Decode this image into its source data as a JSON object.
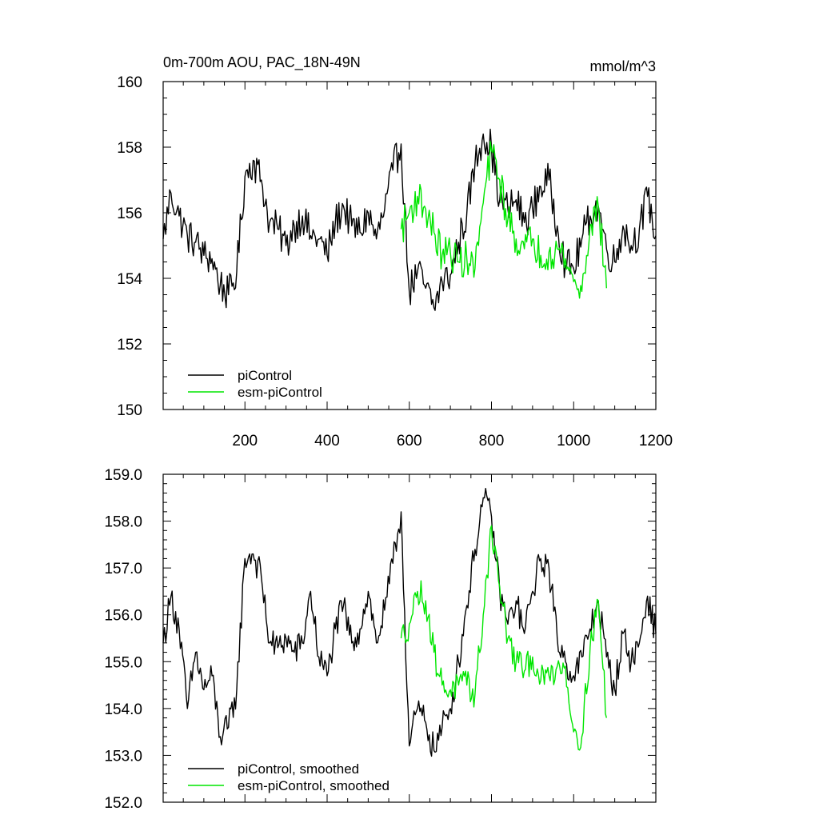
{
  "chart_data": [
    {
      "type": "line",
      "title": "0m-700m AOU, PAC_18N-49N",
      "units": "mmol/m^3",
      "xlabel": "",
      "ylabel": "",
      "xlim": [
        1,
        1200
      ],
      "ylim": [
        150,
        160
      ],
      "xticks": [
        200,
        400,
        600,
        800,
        1000,
        1200
      ],
      "xtick_labels": [
        "200",
        "400",
        "600",
        "800",
        "1000",
        "1200"
      ],
      "yticks": [
        150,
        152,
        154,
        156,
        158,
        160
      ],
      "ytick_labels": [
        "150",
        "152",
        "154",
        "156",
        "158",
        "160"
      ],
      "grid": false,
      "legend_position": "bottom-left",
      "series": [
        {
          "name": "piControl",
          "color": "#000000",
          "x": [
            1,
            20,
            40,
            60,
            80,
            100,
            120,
            140,
            160,
            180,
            200,
            220,
            240,
            260,
            280,
            300,
            320,
            340,
            360,
            380,
            400,
            420,
            440,
            460,
            480,
            500,
            520,
            540,
            560,
            580,
            600,
            620,
            640,
            660,
            680,
            700,
            720,
            740,
            760,
            780,
            800,
            820,
            840,
            860,
            880,
            900,
            920,
            940,
            960,
            980,
            1000,
            1020,
            1040,
            1060,
            1080,
            1100,
            1120,
            1140,
            1160,
            1180,
            1200
          ],
          "values": [
            155.2,
            156.6,
            155.9,
            155.3,
            155.1,
            154.7,
            154.6,
            153.8,
            153.5,
            154.2,
            157.1,
            157.6,
            157.0,
            155.7,
            155.5,
            155.0,
            155.6,
            155.9,
            155.3,
            155.2,
            154.7,
            155.7,
            156.2,
            155.6,
            155.4,
            156.0,
            155.2,
            156.1,
            157.3,
            158.1,
            153.6,
            154.2,
            153.7,
            153.1,
            153.9,
            154.1,
            155.1,
            156.0,
            157.5,
            158.4,
            158.0,
            156.4,
            156.1,
            156.4,
            155.7,
            156.1,
            156.8,
            157.0,
            155.6,
            154.4,
            154.3,
            155.2,
            155.9,
            156.2,
            154.9,
            154.5,
            155.6,
            155.0,
            155.5,
            156.5,
            155.3
          ]
        },
        {
          "name": "esm-piControl",
          "color": "#00e600",
          "x": [
            580,
            600,
            620,
            640,
            660,
            680,
            700,
            720,
            740,
            760,
            780,
            800,
            820,
            840,
            860,
            880,
            900,
            920,
            940,
            960,
            980,
            1000,
            1020,
            1040,
            1060,
            1080
          ],
          "values": [
            155.5,
            156.0,
            156.5,
            156.1,
            155.4,
            154.7,
            154.8,
            154.5,
            154.6,
            154.3,
            156.3,
            157.9,
            157.0,
            155.8,
            155.2,
            154.9,
            155.2,
            154.7,
            154.8,
            154.9,
            154.6,
            153.9,
            153.6,
            155.6,
            156.2,
            153.7
          ]
        }
      ]
    },
    {
      "type": "line",
      "title": "",
      "xlabel": "",
      "ylabel": "",
      "xlim": [
        1,
        1200
      ],
      "ylim": [
        152,
        159
      ],
      "xticks": [
        200,
        400,
        600,
        800,
        1000,
        1200
      ],
      "yticks": [
        152,
        153,
        154,
        155,
        156,
        157,
        158,
        159
      ],
      "ytick_labels": [
        "152.0",
        "153.0",
        "154.0",
        "155.0",
        "156.0",
        "157.0",
        "158.0",
        "159.0"
      ],
      "grid": false,
      "legend_position": "bottom-left",
      "series": [
        {
          "name": "piControl, smoothed",
          "color": "#000000",
          "x": [
            1,
            20,
            40,
            60,
            80,
            100,
            120,
            140,
            160,
            180,
            200,
            220,
            240,
            260,
            280,
            300,
            320,
            340,
            360,
            380,
            400,
            420,
            440,
            460,
            480,
            500,
            520,
            540,
            560,
            580,
            600,
            620,
            640,
            660,
            680,
            700,
            720,
            740,
            760,
            780,
            800,
            820,
            840,
            860,
            880,
            900,
            920,
            940,
            960,
            980,
            1000,
            1020,
            1040,
            1060,
            1080,
            1100,
            1120,
            1140,
            1160,
            1180,
            1200
          ],
          "values": [
            155.4,
            156.4,
            155.7,
            154.0,
            155.2,
            154.4,
            154.7,
            153.4,
            153.6,
            154.4,
            157.2,
            157.3,
            156.8,
            155.4,
            155.3,
            155.5,
            155.2,
            155.4,
            156.5,
            155.1,
            154.7,
            155.7,
            156.2,
            155.4,
            155.7,
            156.5,
            155.4,
            156.1,
            157.1,
            158.2,
            153.2,
            154.0,
            153.7,
            153.1,
            153.6,
            154.0,
            155.0,
            156.2,
            157.4,
            158.5,
            158.1,
            156.5,
            155.8,
            156.3,
            155.6,
            156.5,
            157.2,
            157.0,
            155.5,
            155.0,
            154.7,
            155.1,
            155.7,
            156.3,
            155.1,
            154.4,
            155.6,
            155.0,
            155.4,
            156.4,
            155.6
          ]
        },
        {
          "name": "esm-piControl, smoothed",
          "color": "#00e600",
          "x": [
            580,
            600,
            620,
            640,
            660,
            680,
            700,
            720,
            740,
            760,
            780,
            800,
            820,
            840,
            860,
            880,
            900,
            920,
            940,
            960,
            980,
            1000,
            1020,
            1040,
            1060,
            1080
          ],
          "values": [
            155.5,
            155.8,
            156.5,
            156.3,
            155.2,
            154.5,
            154.4,
            154.5,
            154.5,
            154.3,
            156.0,
            157.9,
            156.6,
            155.5,
            155.0,
            154.8,
            155.1,
            154.6,
            154.7,
            154.9,
            154.9,
            153.5,
            153.4,
            155.3,
            156.3,
            153.8
          ]
        }
      ]
    }
  ]
}
